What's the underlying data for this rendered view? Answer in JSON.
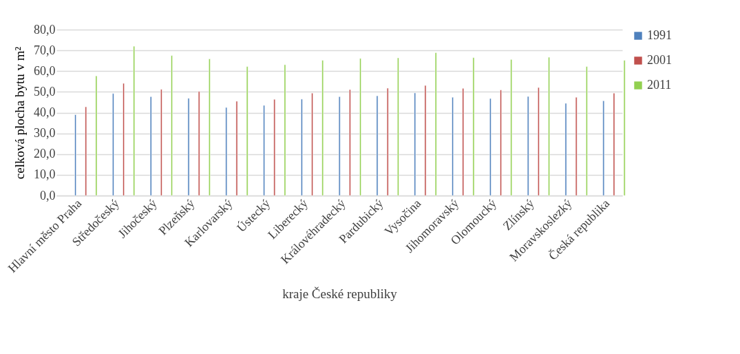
{
  "chart_data": {
    "type": "bar",
    "xlabel": "kraje České republiky",
    "ylabel": "celková plocha bytu v m²",
    "categories": [
      "Hlavní město Praha",
      "Středočeský",
      "Jihočeský",
      "Plzeňský",
      "Karlovarský",
      "Ústecký",
      "Liberecký",
      "Královéhradecký",
      "Pardubický",
      "Vysočina",
      "Jihomoravský",
      "Olomoucký",
      "Zlínský",
      "Moravskoslezký",
      "Česká republika"
    ],
    "series": [
      {
        "name": "1991",
        "color": "#4f81bd",
        "values": [
          39.0,
          49.2,
          47.7,
          46.9,
          42.5,
          43.5,
          46.5,
          47.7,
          48.1,
          49.5,
          47.4,
          46.8,
          47.8,
          44.5,
          45.7
        ]
      },
      {
        "name": "2001",
        "color": "#c0504d",
        "values": [
          42.8,
          54.1,
          51.2,
          50.2,
          45.5,
          46.4,
          49.4,
          51.1,
          51.8,
          53.1,
          51.7,
          50.9,
          52.1,
          47.4,
          49.4
        ]
      },
      {
        "name": "2011",
        "color": "#92d050",
        "values": [
          57.7,
          72.0,
          67.5,
          65.9,
          62.2,
          63.1,
          65.2,
          66.1,
          66.4,
          68.9,
          66.5,
          65.6,
          66.7,
          62.2,
          65.2
        ]
      }
    ],
    "ylim": [
      0,
      80
    ],
    "yticks": [
      {
        "value": 0,
        "label": "0,0"
      },
      {
        "value": 10,
        "label": "10,0"
      },
      {
        "value": 20,
        "label": "20,0"
      },
      {
        "value": 30,
        "label": "30,0"
      },
      {
        "value": 40,
        "label": "40,0"
      },
      {
        "value": 50,
        "label": "50,0"
      },
      {
        "value": 60,
        "label": "60,0"
      },
      {
        "value": 70,
        "label": "70,0"
      },
      {
        "value": 80,
        "label": "80,0"
      }
    ],
    "grid": "y",
    "legend": "right"
  }
}
